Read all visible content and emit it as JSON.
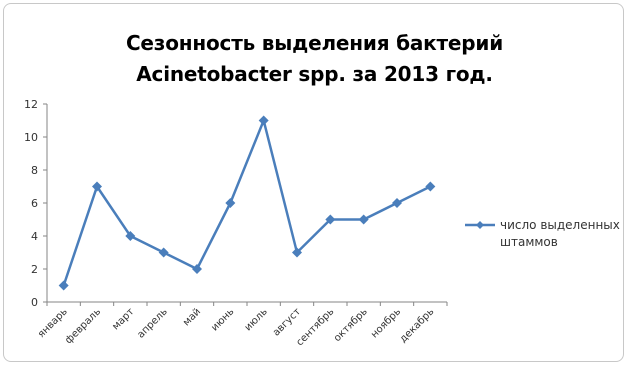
{
  "chart_data": {
    "type": "line",
    "title_line1": "Сезонность выделения бактерий",
    "title_line2": "Acinetobacter spp. за 2013 год.",
    "xlabel": "",
    "ylabel": "",
    "ylim": [
      0,
      12
    ],
    "yticks": [
      "0",
      "2",
      "4",
      "6",
      "8",
      "10",
      "12"
    ],
    "grid": false,
    "legend_position": "right",
    "categories": [
      "январь",
      "февраль",
      "март",
      "апрель",
      "май",
      "июнь",
      "июль",
      "август",
      "сентябрь",
      "октябрь",
      "ноябрь",
      "декабрь"
    ],
    "series": [
      {
        "name": "число выделенных штаммов",
        "legend_lines": [
          "число выделенных",
          "штаммов"
        ],
        "color": "#4a7ebb",
        "marker": "diamond",
        "values": [
          1,
          7,
          4,
          3,
          2,
          6,
          11,
          3,
          5,
          5,
          6,
          7
        ]
      }
    ]
  }
}
